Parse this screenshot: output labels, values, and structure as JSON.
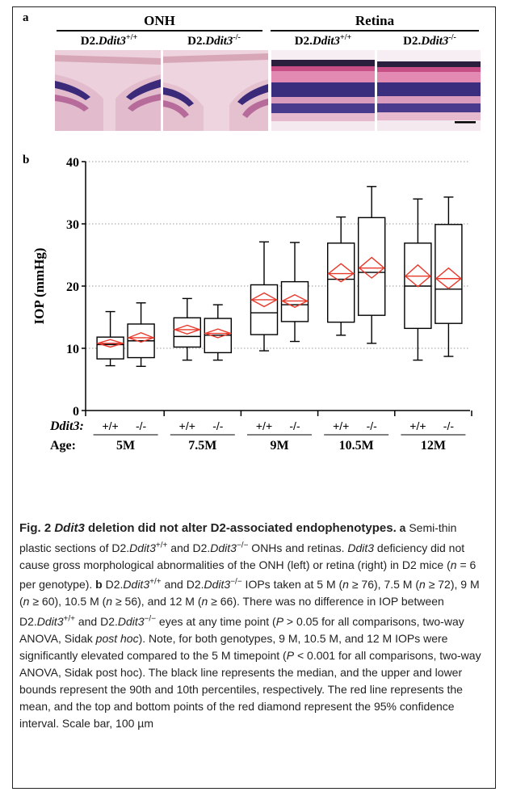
{
  "panel_a": {
    "label": "a",
    "groups": [
      {
        "title": "ONH",
        "genotypes": [
          "D2.",
          "D2."
        ]
      },
      {
        "title": "Retina",
        "genotypes": [
          "D2.",
          "D2."
        ]
      }
    ],
    "gene": "Ddit3",
    "wt": "+/+",
    "ko": "-/-"
  },
  "panel_b": {
    "label": "b"
  },
  "chart_data": {
    "type": "box",
    "ylabel": "IOP (mmHg)",
    "ylim": [
      0,
      40
    ],
    "yticks": [
      0,
      10,
      20,
      30,
      40
    ],
    "grid": "horizontal dotted",
    "row_gene_label": "Ddit3:",
    "row_age_label": "Age:",
    "ages": [
      "5M",
      "7.5M",
      "9M",
      "10.5M",
      "12M"
    ],
    "genotype_labels": [
      "+/+",
      "-/-"
    ],
    "colors": {
      "box": "#000000",
      "mean": "#e8392b"
    },
    "boxes": [
      {
        "age": "5M",
        "genotype": "+/+",
        "p10": 7.2,
        "q1": 8.3,
        "median": 10.6,
        "q3": 11.8,
        "p90": 15.9,
        "mean": 10.8,
        "ci": [
          10.2,
          11.4
        ]
      },
      {
        "age": "5M",
        "genotype": "-/-",
        "p10": 7.1,
        "q1": 8.5,
        "median": 11.2,
        "q3": 13.9,
        "p90": 17.3,
        "mean": 11.7,
        "ci": [
          11.0,
          12.5
        ]
      },
      {
        "age": "7.5M",
        "genotype": "+/+",
        "p10": 8.1,
        "q1": 10.2,
        "median": 11.9,
        "q3": 14.9,
        "p90": 18.0,
        "mean": 13.0,
        "ci": [
          12.3,
          13.7
        ]
      },
      {
        "age": "7.5M",
        "genotype": "-/-",
        "p10": 8.1,
        "q1": 9.3,
        "median": 12.1,
        "q3": 14.8,
        "p90": 17.0,
        "mean": 12.4,
        "ci": [
          11.7,
          13.1
        ]
      },
      {
        "age": "9M",
        "genotype": "+/+",
        "p10": 9.6,
        "q1": 12.2,
        "median": 15.7,
        "q3": 20.2,
        "p90": 27.1,
        "mean": 17.8,
        "ci": [
          16.7,
          18.9
        ]
      },
      {
        "age": "9M",
        "genotype": "-/-",
        "p10": 11.1,
        "q1": 14.3,
        "median": 17.0,
        "q3": 20.7,
        "p90": 27.0,
        "mean": 17.6,
        "ci": [
          16.6,
          18.6
        ]
      },
      {
        "age": "10.5M",
        "genotype": "+/+",
        "p10": 12.1,
        "q1": 14.2,
        "median": 21.1,
        "q3": 26.9,
        "p90": 31.1,
        "mean": 22.0,
        "ci": [
          20.7,
          23.6
        ]
      },
      {
        "age": "10.5M",
        "genotype": "-/-",
        "p10": 10.8,
        "q1": 15.3,
        "median": 22.2,
        "q3": 31.0,
        "p90": 36.0,
        "mean": 22.9,
        "ci": [
          21.3,
          24.6
        ]
      },
      {
        "age": "12M",
        "genotype": "+/+",
        "p10": 8.1,
        "q1": 13.2,
        "median": 20.0,
        "q3": 26.9,
        "p90": 34.0,
        "mean": 21.6,
        "ci": [
          19.9,
          23.4
        ]
      },
      {
        "age": "12M",
        "genotype": "-/-",
        "p10": 8.7,
        "q1": 14.0,
        "median": 19.5,
        "q3": 29.9,
        "p90": 34.3,
        "mean": 21.2,
        "ci": [
          19.6,
          22.9
        ]
      }
    ]
  },
  "caption": {
    "fig_label": "Fig. 2",
    "title_gene": "Ddit3",
    "title_rest": " deletion did not alter D2-associated endophenotypes.",
    "parts": [
      {
        "t": " "
      },
      {
        "t": "a",
        "b": true
      },
      {
        "t": " Semi-thin plastic sections of D2."
      },
      {
        "t": "Ddit3",
        "i": true
      },
      {
        "t": "+/+",
        "sup": true
      },
      {
        "t": " and D2."
      },
      {
        "t": "Ddit3",
        "i": true
      },
      {
        "t": "−/−",
        "sup": true
      },
      {
        "t": " ONHs and retinas. "
      },
      {
        "t": "Ddit3",
        "i": true
      },
      {
        "t": " deficiency did not cause gross morphological abnormalities of the ONH (left) or retina (right) in D2 mice ("
      },
      {
        "t": "n",
        "i": true
      },
      {
        "t": " = 6 per genotype). "
      },
      {
        "t": "b",
        "b": true
      },
      {
        "t": " D2."
      },
      {
        "t": "Ddit3",
        "i": true
      },
      {
        "t": "+/+",
        "sup": true
      },
      {
        "t": " and D2."
      },
      {
        "t": "Ddit3",
        "i": true
      },
      {
        "t": "−/−",
        "sup": true
      },
      {
        "t": " IOPs taken at 5 M ("
      },
      {
        "t": "n",
        "i": true
      },
      {
        "t": " ≥ 76), 7.5 M ("
      },
      {
        "t": "n",
        "i": true
      },
      {
        "t": " ≥ 72), 9 M ("
      },
      {
        "t": "n",
        "i": true
      },
      {
        "t": " ≥ 60), 10.5 M ("
      },
      {
        "t": "n",
        "i": true
      },
      {
        "t": " ≥ 56), and 12 M ("
      },
      {
        "t": "n",
        "i": true
      },
      {
        "t": " ≥ 66). There was no difference in IOP between D2."
      },
      {
        "t": "Ddit3",
        "i": true
      },
      {
        "t": "+/+",
        "sup": true
      },
      {
        "t": " and D2."
      },
      {
        "t": "Ddit3",
        "i": true
      },
      {
        "t": "−/−",
        "sup": true
      },
      {
        "t": " eyes at any time point ("
      },
      {
        "t": "P",
        "i": true
      },
      {
        "t": " > 0.05 for all comparisons, two-way ANOVA, Sidak "
      },
      {
        "t": "post hoc",
        "i": true
      },
      {
        "t": "). Note, for both genotypes, 9 M, 10.5 M, and 12 M IOPs were significantly elevated compared to the 5 M timepoint ("
      },
      {
        "t": "P",
        "i": true
      },
      {
        "t": " < 0.001 for all comparisons, two-way ANOVA, Sidak post hoc). The black line represents the median, and the upper and lower bounds represent the 90th and 10th percentiles, respectively. The red line represents the mean, and the top and bottom points of the red diamond represent the 95% confidence interval. Scale bar, 100 µm"
      }
    ]
  }
}
